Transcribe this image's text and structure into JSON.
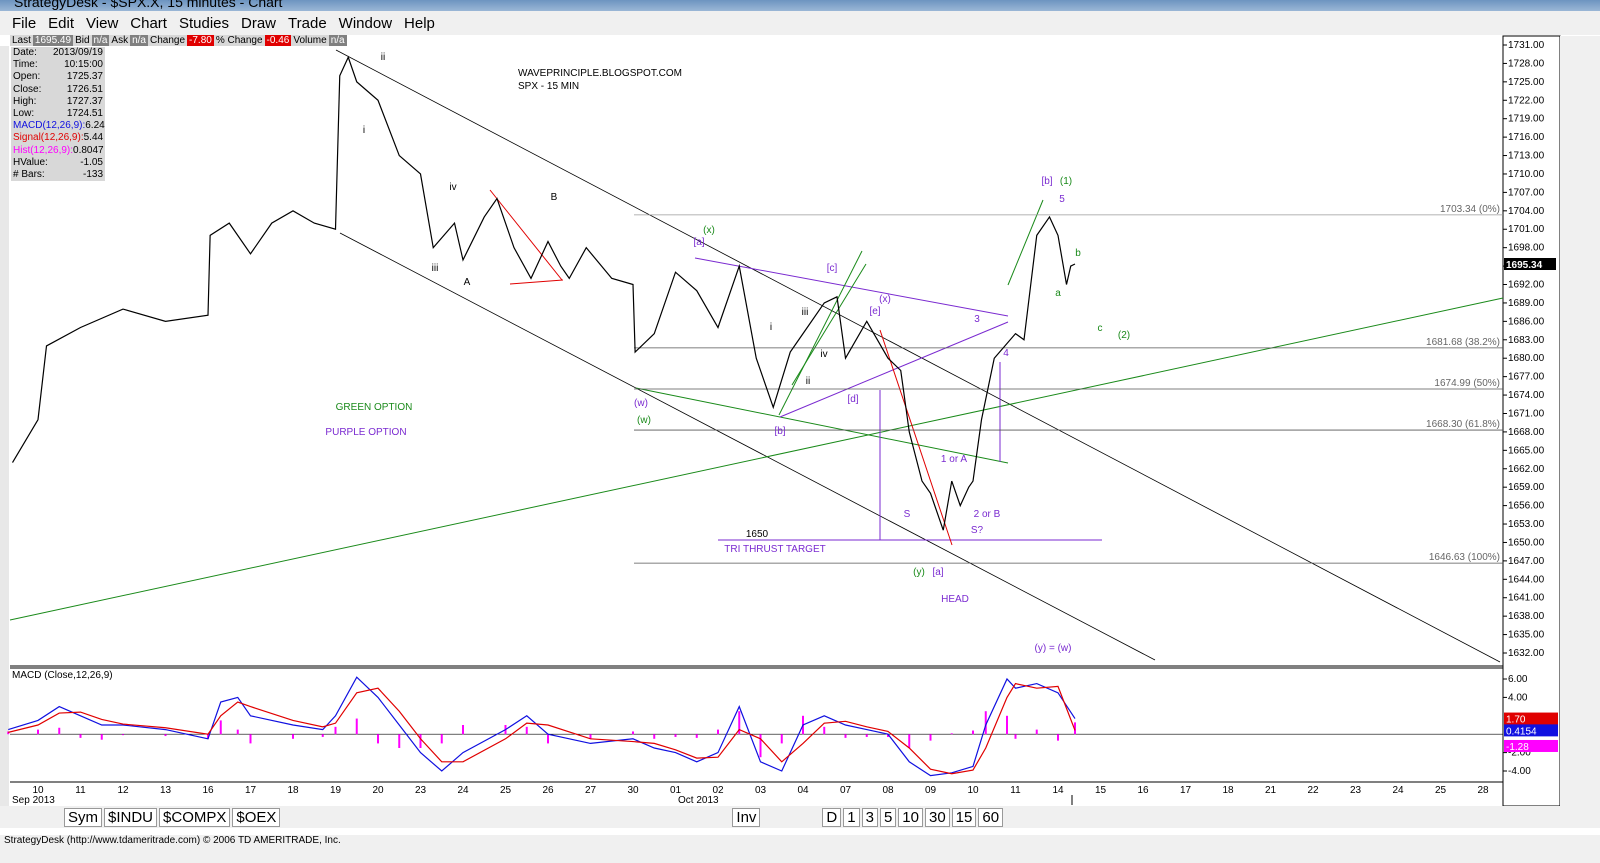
{
  "window": {
    "title": "StrategyDesk - $SPX.X, 15 minutes - Chart"
  },
  "menu": [
    "File",
    "Edit",
    "View",
    "Chart",
    "Studies",
    "Draw",
    "Trade",
    "Window",
    "Help"
  ],
  "quote_bar": [
    [
      "Last",
      "1695.49"
    ],
    [
      "Bid",
      "n/a"
    ],
    [
      "Ask",
      "n/a"
    ],
    [
      "Change",
      "-7.80"
    ],
    [
      "% Change",
      "-0.46"
    ],
    [
      "Volume",
      "n/a"
    ]
  ],
  "data_window": [
    [
      "Date:",
      "2013/09/19"
    ],
    [
      "Time:",
      "10:15:00"
    ],
    [
      "Open:",
      "1725.37"
    ],
    [
      "Close:",
      "1726.51"
    ],
    [
      "High:",
      "1727.37"
    ],
    [
      "Low:",
      "1724.51"
    ],
    [
      "MACD(12,26,9):",
      "6.24"
    ],
    [
      "Signal(12,26,9):",
      "5.44"
    ],
    [
      "Hist(12,26,9):",
      "0.8047"
    ],
    [
      "HValue:",
      "-1.05"
    ],
    [
      "# Bars:",
      "-133"
    ]
  ],
  "chart": {
    "watermark": [
      "WAVEPRINCIPLE.BLOGSPOT.COM",
      "SPX - 15 MIN"
    ],
    "price_axis": [
      {
        "value": 1731,
        "label": "1731.00"
      },
      {
        "value": 1728,
        "label": "1728.00"
      },
      {
        "value": 1725,
        "label": "1725.00"
      },
      {
        "value": 1722,
        "label": "1722.00"
      },
      {
        "value": 1719,
        "label": "1719.00"
      },
      {
        "value": 1716,
        "label": "1716.00"
      },
      {
        "value": 1713,
        "label": "1713.00"
      },
      {
        "value": 1710,
        "label": "1710.00"
      },
      {
        "value": 1707,
        "label": "1707.00"
      },
      {
        "value": 1704,
        "label": "1704.00"
      },
      {
        "value": 1701,
        "label": "1701.00"
      },
      {
        "value": 1698,
        "label": "1698.00"
      },
      {
        "value": 1695,
        "label": "1695.00"
      },
      {
        "value": 1692,
        "label": "1692.00"
      },
      {
        "value": 1689,
        "label": "1689.00"
      },
      {
        "value": 1686,
        "label": "1686.00"
      },
      {
        "value": 1683,
        "label": "1683.00"
      },
      {
        "value": 1680,
        "label": "1680.00"
      },
      {
        "value": 1677,
        "label": "1677.00"
      },
      {
        "value": 1674,
        "label": "1674.00"
      },
      {
        "value": 1671,
        "label": "1671.00"
      },
      {
        "value": 1668,
        "label": "1668.00"
      },
      {
        "value": 1665,
        "label": "1665.00"
      },
      {
        "value": 1662,
        "label": "1662.00"
      },
      {
        "value": 1659,
        "label": "1659.00"
      },
      {
        "value": 1656,
        "label": "1656.00"
      },
      {
        "value": 1653,
        "label": "1653.00"
      },
      {
        "value": 1650,
        "label": "1650.00"
      },
      {
        "value": 1647,
        "label": "1647.00"
      },
      {
        "value": 1644,
        "label": "1644.00"
      },
      {
        "value": 1641,
        "label": "1641.00"
      },
      {
        "value": 1638,
        "label": "1638.00"
      },
      {
        "value": 1635,
        "label": "1635.00"
      },
      {
        "value": 1632,
        "label": "1632.00"
      }
    ],
    "last_price": {
      "value": 1695.34,
      "label": "1695.34"
    },
    "price_path": {
      "x": [
        -0.6,
        0,
        0.2,
        1,
        2,
        3,
        4,
        4.05,
        4.5,
        5,
        5.5,
        6,
        6.5,
        7,
        7.1,
        7.3,
        7.5,
        8,
        8.5,
        9,
        9.3,
        9.8,
        10,
        10.5,
        10.8,
        11.2,
        11.6,
        12,
        12.3,
        12.5,
        12.9,
        13.5,
        14,
        14.05,
        14.5,
        15,
        15.5,
        16,
        16.5,
        16.9,
        17.3,
        17.7,
        18,
        18.5,
        18.8,
        19,
        19.5,
        20,
        20.3,
        20.5,
        20.8,
        21,
        21.3,
        21.5,
        21.7,
        21.9,
        22,
        22.2,
        22.5,
        23,
        23.2,
        23.5,
        23.8,
        24,
        24.2,
        24.3,
        24.4
      ],
      "values": [
        1663,
        1670,
        1682,
        1685,
        1688,
        1686,
        1687,
        1700,
        1702,
        1697,
        1702,
        1704,
        1702,
        1701,
        1726,
        1729,
        1725,
        1722,
        1713,
        1710,
        1698,
        1702,
        1696,
        1703,
        1706,
        1698,
        1693,
        1699,
        1695,
        1693,
        1698,
        1693,
        1692,
        1681,
        1684,
        1694,
        1691,
        1685,
        1695,
        1680,
        1672,
        1681,
        1684,
        1689,
        1690,
        1680,
        1686,
        1680,
        1678,
        1668,
        1660,
        1658,
        1652,
        1660,
        1656,
        1659,
        1660,
        1670,
        1680,
        1684,
        1683,
        1700,
        1703,
        1700,
        1692,
        1695,
        1695.34
      ]
    },
    "fib_levels": [
      {
        "value": 1703.34,
        "label": "1703.34 (0%)"
      },
      {
        "value": 1681.68,
        "label": "1681.68 (38.2%)"
      },
      {
        "value": 1674.99,
        "label": "1674.99 (50%)"
      },
      {
        "value": 1668.3,
        "label": "1668.30 (61.8%)"
      },
      {
        "value": 1646.63,
        "label": "1646.63 (100%)"
      }
    ],
    "annotations": [
      "ii",
      "i",
      "iv",
      "iii",
      "A",
      "B",
      "(x)",
      "[a]",
      "[c]",
      "i",
      "iii",
      "iv",
      "ii",
      "(x)",
      "[e]",
      "[d]",
      "(w)",
      "(w)",
      "[b]",
      "GREEN OPTION",
      "PURPLE OPTION",
      "3",
      "4",
      "[b]",
      "(1)",
      "5",
      "b",
      "a",
      "c",
      "(2)",
      "1 or A",
      "S",
      "2 or B",
      "S?",
      "1650",
      "TRI THRUST TARGET",
      "(y)",
      "[a]",
      "HEAD",
      "(y) = (w)"
    ],
    "macd": {
      "title": "MACD (Close,12,26,9)",
      "axis": [
        {
          "value": 6,
          "label": "6.00"
        },
        {
          "value": 4,
          "label": "4.00"
        },
        {
          "value": -2,
          "label": "-2.00"
        },
        {
          "value": -4,
          "label": "-4.00"
        }
      ],
      "badges": [
        {
          "value": 1.7,
          "label": "1.70",
          "color": "#e00000"
        },
        {
          "value": 0.4154,
          "label": "0.4154",
          "color": "#1010e0"
        },
        {
          "value": -1.28,
          "label": "-1.28",
          "color": "#ff00ff"
        }
      ],
      "x": [
        -0.7,
        0,
        0.5,
        1,
        1.5,
        2,
        3,
        4,
        4.3,
        4.7,
        5,
        6,
        6.7,
        7,
        7.5,
        8,
        8.5,
        9,
        9.5,
        10,
        11,
        11.5,
        12,
        13,
        14,
        14.5,
        15,
        15.5,
        16,
        16.5,
        17,
        17.5,
        18,
        18.5,
        19,
        19.5,
        20,
        20.5,
        21,
        21.5,
        22,
        22.3,
        22.8,
        23,
        23.5,
        24,
        24.4
      ],
      "macd": [
        0.5,
        1.5,
        3,
        2,
        1,
        1,
        0.5,
        -0.5,
        3.5,
        4,
        2,
        1,
        0.5,
        2,
        6.2,
        4,
        1,
        -2,
        -4,
        -2,
        0.5,
        2,
        0,
        -1,
        -0.5,
        -1.5,
        -2,
        -3,
        -2,
        3,
        -3,
        -4,
        1,
        2,
        1,
        0.5,
        0,
        -3,
        -4.5,
        -4.2,
        -3.5,
        1,
        6,
        5,
        5.5,
        4.5,
        1.7
      ],
      "signal": [
        0.2,
        1,
        2.3,
        2.4,
        1.6,
        1.1,
        0.7,
        0,
        2,
        3.5,
        3,
        1.5,
        0.8,
        1.2,
        4.5,
        5,
        2.5,
        -0.5,
        -3,
        -3,
        -0.5,
        1.2,
        1,
        -0.5,
        -0.8,
        -1,
        -1.7,
        -2.6,
        -2.5,
        0.5,
        -0.5,
        -3,
        -1,
        1.2,
        1.4,
        0.8,
        0.3,
        -1.5,
        -3.8,
        -4.3,
        -3.9,
        -1.5,
        4,
        5.5,
        5,
        5.2,
        0.4154
      ]
    },
    "dates": [
      "10",
      "11",
      "12",
      "13",
      "16",
      "17",
      "18",
      "19",
      "20",
      "23",
      "24",
      "25",
      "26",
      "27",
      "30",
      "01",
      "02",
      "03",
      "04",
      "07",
      "08",
      "09",
      "10",
      "11",
      "14",
      "15",
      "16",
      "17",
      "18",
      "21",
      "22",
      "23",
      "24",
      "25",
      "28"
    ],
    "month_labels": [
      "Sep 2013",
      "Oct 2013"
    ]
  },
  "tabs": [
    "Sym",
    "$INDU",
    "$COMPX",
    "$OEX",
    "Inv",
    "D",
    "1",
    "3",
    "5",
    "10",
    "30",
    "15",
    "60"
  ],
  "status": "StrategyDesk (http://www.tdameritrade.com) © 2006 TD AMERITRADE, Inc."
}
